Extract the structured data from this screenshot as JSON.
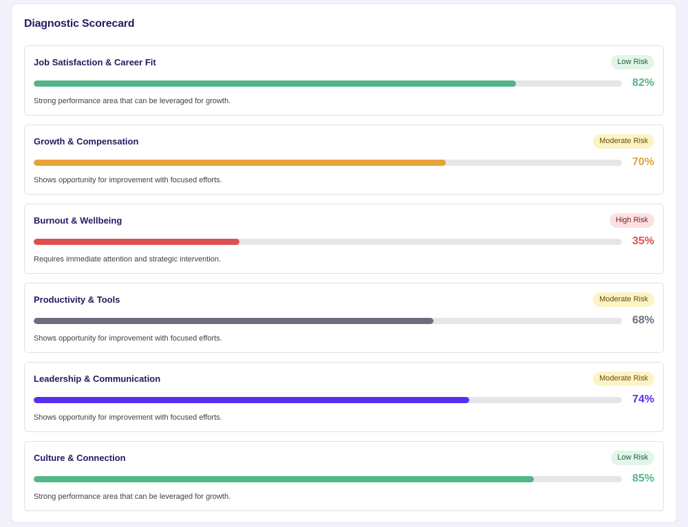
{
  "scorecard": {
    "title": "Diagnostic Scorecard",
    "items": [
      {
        "title": "Job Satisfaction & Career Fit",
        "risk": "Low Risk",
        "risk_level": "low",
        "percent": 82,
        "percent_label": "82%",
        "color": "#52b686",
        "description": "Strong performance area that can be leveraged for growth."
      },
      {
        "title": "Growth & Compensation",
        "risk": "Moderate Risk",
        "risk_level": "moderate",
        "percent": 70,
        "percent_label": "70%",
        "color": "#e6a23c",
        "description": "Shows opportunity for improvement with focused efforts."
      },
      {
        "title": "Burnout & Wellbeing",
        "risk": "High Risk",
        "risk_level": "high",
        "percent": 35,
        "percent_label": "35%",
        "color": "#de4f4f",
        "description": "Requires immediate attention and strategic intervention."
      },
      {
        "title": "Productivity & Tools",
        "risk": "Moderate Risk",
        "risk_level": "moderate",
        "percent": 68,
        "percent_label": "68%",
        "color": "#6b6e7d",
        "description": "Shows opportunity for improvement with focused efforts."
      },
      {
        "title": "Leadership & Communication",
        "risk": "Moderate Risk",
        "risk_level": "moderate",
        "percent": 74,
        "percent_label": "74%",
        "color": "#5a2ef0",
        "description": "Shows opportunity for improvement with focused efforts."
      },
      {
        "title": "Culture & Connection",
        "risk": "Low Risk",
        "risk_level": "low",
        "percent": 85,
        "percent_label": "85%",
        "color": "#52b686",
        "description": "Strong performance area that can be leveraged for growth."
      }
    ]
  }
}
